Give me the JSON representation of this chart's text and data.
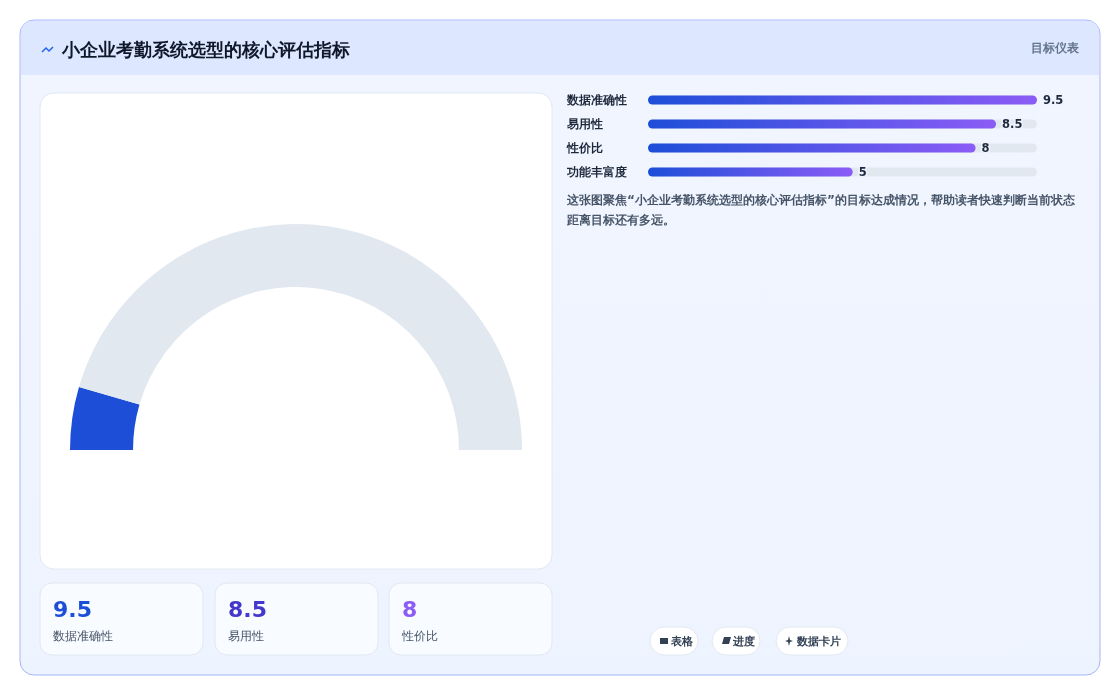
{
  "chart_data": [
    {
      "type": "donut",
      "title": "小企业考勤系统选型的核心评估指标",
      "annotations": [
        "目标仪表"
      ],
      "categories": [
        null,
        null
      ],
      "values": [
        9,
        91
      ],
      "colors": [
        "#1d4ed8",
        "#e2e8f0"
      ]
    },
    {
      "type": "bar",
      "orientation": "horizontal",
      "categories": [
        "数据准确性",
        "易用性",
        "性价比",
        "功能丰富度"
      ],
      "values": [
        9.5,
        8.5,
        8,
        5
      ],
      "color": "#1d4ed8",
      "data_labels": true,
      "annotations": [
        "这张图聚焦“小企业考勤系统选型的核心评估指标”的目标达成情况，帮助读者快速判断当前状态距离目标还有多远。",
        "表格",
        "进度",
        "数据卡片"
      ]
    },
    {
      "type": "other",
      "annotations": [
        "9.5",
        "数据准确性",
        "8.5",
        "易用性",
        "8",
        "性价比"
      ]
    }
  ]
}
